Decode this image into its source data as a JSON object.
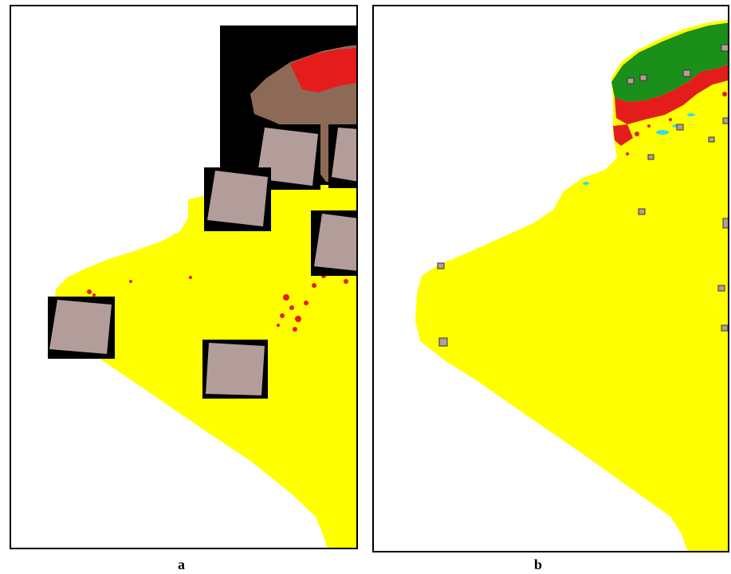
{
  "panels": [
    {
      "id": "a",
      "label": "a"
    },
    {
      "id": "b",
      "label": "b"
    }
  ],
  "colors": {
    "desert": "#ffff00",
    "dense_vegetation": "#1a8f1a",
    "vegetation": "#e51c1c",
    "water": "#33e0e0",
    "scene_fill": "#b39d9a",
    "scene_background": "#000000",
    "coastal_imagery": "#8c6a55"
  }
}
